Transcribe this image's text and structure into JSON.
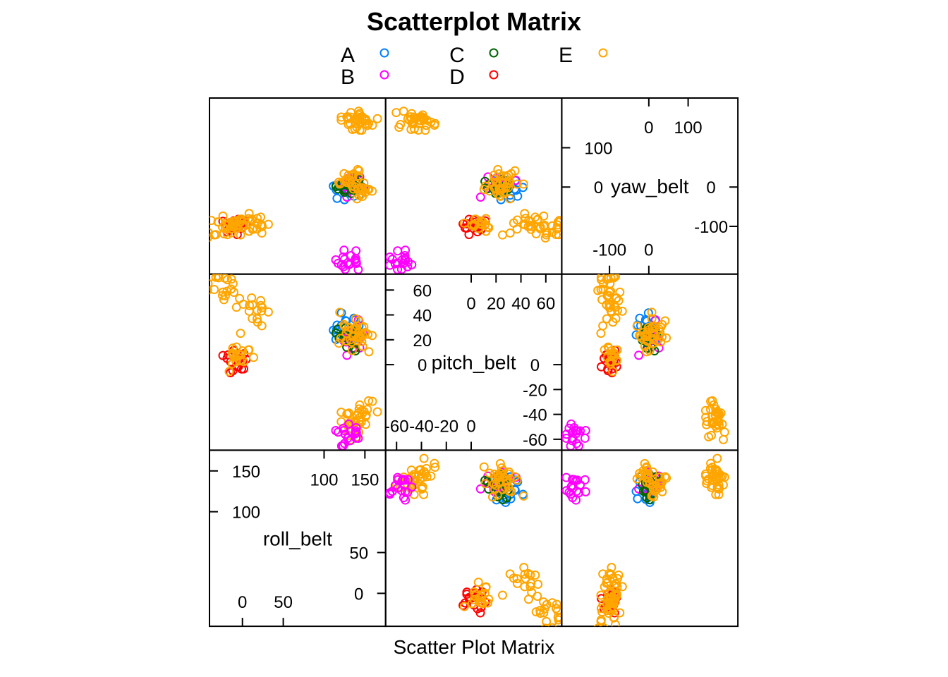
{
  "chart_data": {
    "type": "scatter",
    "title": "Scatterplot Matrix",
    "xlabel": "Scatter Plot Matrix",
    "variables": [
      {
        "name": "roll_belt",
        "range": [
          -30,
          165
        ],
        "diag_ticks_lower": [
          "0",
          "50"
        ],
        "diag_ticks_upper": [
          "100",
          "150"
        ],
        "diag_ticks_left": [
          "100",
          "150"
        ],
        "diag_ticks_right": [
          "0",
          "50"
        ]
      },
      {
        "name": "pitch_belt",
        "range": [
          -62,
          66
        ],
        "diag_ticks_lower": [
          "-60",
          "-40",
          "-20",
          "0"
        ],
        "diag_ticks_upper": [
          "0",
          "20",
          "40",
          "60"
        ],
        "diag_ticks_left": [
          "0",
          "20",
          "40",
          "60"
        ],
        "diag_ticks_right": [
          "-60",
          "-40",
          "-20",
          "0"
        ]
      },
      {
        "name": "yaw_belt",
        "range": [
          -200,
          205
        ],
        "diag_ticks_lower": [
          "-100",
          "0"
        ],
        "diag_ticks_upper": [
          "0",
          "100"
        ],
        "diag_ticks_left": [
          "0",
          "100"
        ],
        "diag_ticks_right": [
          "-100",
          "0"
        ]
      }
    ],
    "legend": {
      "placement": "top",
      "series": [
        {
          "name": "A",
          "color": "#0080ff"
        },
        {
          "name": "B",
          "color": "#ff00ff"
        },
        {
          "name": "C",
          "color": "#006400"
        },
        {
          "name": "D",
          "color": "#ff0000"
        },
        {
          "name": "E",
          "color": "#ffa500"
        }
      ]
    },
    "marker": "open-circle",
    "clusters": [
      {
        "roll": 125,
        "pitch": 30,
        "yaw": -5,
        "class": "A"
      },
      {
        "roll": 130,
        "pitch": 22,
        "yaw": 0,
        "class": "B"
      },
      {
        "roll": 128,
        "pitch": 18,
        "yaw": -2,
        "class": "C"
      },
      {
        "roll": -5,
        "pitch": 0,
        "yaw": -90,
        "class": "D"
      },
      {
        "roll": 130,
        "pitch": 25,
        "yaw": 20,
        "class": "E"
      },
      {
        "roll": 140,
        "pitch": 20,
        "yaw": -10,
        "class": "E"
      },
      {
        "roll": 145,
        "pitch": -38,
        "yaw": 160,
        "class": "E"
      },
      {
        "roll": 130,
        "pitch": -45,
        "yaw": 163,
        "class": "E"
      },
      {
        "roll": 125,
        "pitch": -50,
        "yaw": -180,
        "class": "B"
      },
      {
        "roll": 0,
        "pitch": 5,
        "yaw": -93,
        "class": "E"
      },
      {
        "roll": 15,
        "pitch": 40,
        "yaw": -93,
        "class": "E"
      },
      {
        "roll": -20,
        "pitch": 60,
        "yaw": -95,
        "class": "E"
      }
    ]
  }
}
